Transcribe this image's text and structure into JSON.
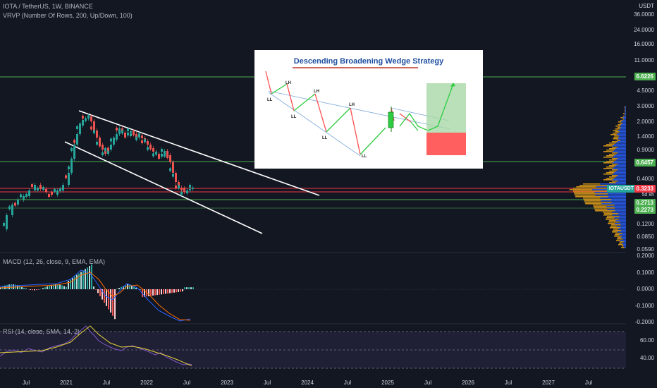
{
  "header": {
    "symbol_line": "IOTA / TetherUS, 1W, BINANCE",
    "vrvp_line": "VRVP (Number Of Rows, 200, Up/Down, 100)"
  },
  "indicators": {
    "macd_label": "MACD (12, 26, close, 9, EMA, EMA)",
    "rsi_label": "RSI (14, close, SMA, 14, 2)"
  },
  "price_axis": {
    "currency": "USDT",
    "ticks": [
      "36.0000",
      "24.0000",
      "16.0000",
      "11.0000",
      "6.6226",
      "4.5000",
      "3.0000",
      "2.0000",
      "1.4000",
      "0.9000",
      "0.6457",
      "0.4000",
      "0.3233",
      "0.2713",
      "0.2273",
      "0.1200",
      "0.0850",
      "0.0590"
    ],
    "last_price_tag": {
      "symbol": "IOTAUSDT",
      "price": "0.3233",
      "countdown": "5d 8h"
    },
    "level_tags": [
      "6.6226",
      "0.6457",
      "0.2713",
      "0.2273"
    ]
  },
  "macd_axis": {
    "ticks": [
      "0.2000",
      "0.1000",
      "0.0000",
      "-0.1000",
      "-0.2000"
    ]
  },
  "rsi_axis": {
    "ticks": [
      "60.00",
      "40.00"
    ]
  },
  "time_axis": {
    "labels": [
      "Jul",
      "2021",
      "Jul",
      "2022",
      "Jul",
      "2023",
      "Jul",
      "2024",
      "Jul",
      "2025",
      "Jul",
      "2026",
      "Jul",
      "2027",
      "Jul"
    ]
  },
  "inset": {
    "title": "Descending Broadening Wedge Strategy",
    "labels": [
      "LH",
      "LH",
      "LH",
      "LL",
      "LL",
      "LL",
      "LL"
    ]
  },
  "colors": {
    "background": "#131722",
    "up": "#26a69a",
    "down": "#ef5350",
    "green_line": "#4caf50",
    "red_line": "#f23645",
    "macd_line": "#2962ff",
    "signal_line": "#ff6d00",
    "rsi_line": "#7e57c2",
    "rsi_ma": "#f5e04c"
  }
}
